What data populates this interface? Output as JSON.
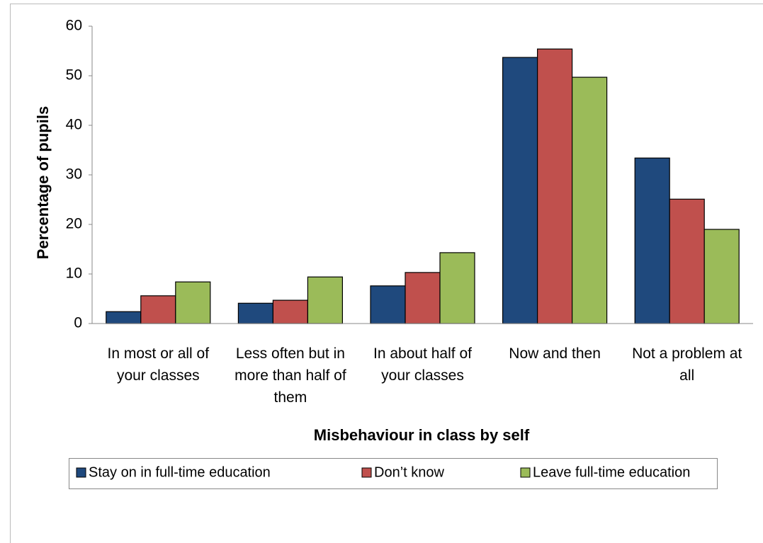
{
  "chart_data": {
    "type": "bar",
    "xlabel": "Misbehaviour in class by self",
    "ylabel": "Percentage of pupils",
    "categories": [
      "In most or all of your classes",
      "Less often but in more than half of them",
      "In about half of your classes",
      "Now and then",
      "Not a problem at all"
    ],
    "series": [
      {
        "name": "Stay on in full-time education",
        "color": "#1f497d",
        "values": [
          2.4,
          4.1,
          7.6,
          53.7,
          33.4
        ]
      },
      {
        "name": "Don’t know",
        "color": "#c0504d",
        "values": [
          5.6,
          4.7,
          10.3,
          55.4,
          25.1
        ]
      },
      {
        "name": "Leave full-time education",
        "color": "#9bbb59",
        "values": [
          8.4,
          9.4,
          14.3,
          49.7,
          19.0
        ]
      }
    ],
    "ylim": [
      0,
      60
    ],
    "yticks": [
      0,
      10,
      20,
      30,
      40,
      50,
      60
    ],
    "grid": false,
    "legend": "bottom"
  }
}
